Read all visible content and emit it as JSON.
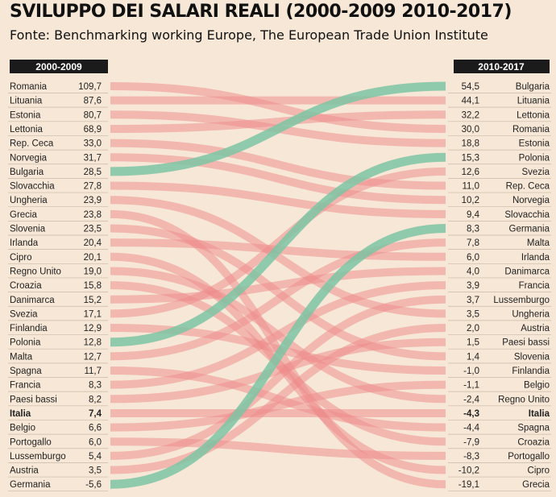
{
  "header": {
    "title": "SVILUPPO DEI SALARI REALI (2000-2009 2010-2017)",
    "subtitle": "Fonte: Benchmarking working Europe, The European Trade Union Institute"
  },
  "colors": {
    "background": "#f6e7d6",
    "band": "#ee8a8a",
    "highlight": "#7ec4a4",
    "header_box": "#1b1b1b",
    "header_text": "#ffffff",
    "row_line": "#c9b9a6"
  },
  "chart_data": {
    "type": "slope",
    "title": "SVILUPPO DEI SALARI REALI (2000-2009 2010-2017)",
    "left_header": "2000-2009",
    "right_header": "2010-2017",
    "highlighted_green": [
      "Bulgaria",
      "Polonia",
      "Germania"
    ],
    "bold": [
      "Italia"
    ],
    "left": [
      {
        "country": "Romania",
        "label": "109,7",
        "value": 109.7
      },
      {
        "country": "Lituania",
        "label": "87,6",
        "value": 87.6
      },
      {
        "country": "Estonia",
        "label": "80,7",
        "value": 80.7
      },
      {
        "country": "Lettonia",
        "label": "68,9",
        "value": 68.9
      },
      {
        "country": "Rep. Ceca",
        "label": "33,0",
        "value": 33.0
      },
      {
        "country": "Norvegia",
        "label": "31,7",
        "value": 31.7
      },
      {
        "country": "Bulgaria",
        "label": "28,5",
        "value": 28.5
      },
      {
        "country": "Slovacchia",
        "label": "27,8",
        "value": 27.8
      },
      {
        "country": "Ungheria",
        "label": "23,9",
        "value": 23.9
      },
      {
        "country": "Grecia",
        "label": "23,8",
        "value": 23.8
      },
      {
        "country": "Slovenia",
        "label": "23,5",
        "value": 23.5
      },
      {
        "country": "Irlanda",
        "label": "20,4",
        "value": 20.4
      },
      {
        "country": "Cipro",
        "label": "20,1",
        "value": 20.1
      },
      {
        "country": "Regno Unito",
        "label": "19,0",
        "value": 19.0
      },
      {
        "country": "Croazia",
        "label": "15,8",
        "value": 15.8
      },
      {
        "country": "Danimarca",
        "label": "15,2",
        "value": 15.2
      },
      {
        "country": "Svezia",
        "label": "17,1",
        "value": 17.1
      },
      {
        "country": "Finlandia",
        "label": "12,9",
        "value": 12.9
      },
      {
        "country": "Polonia",
        "label": "12,8",
        "value": 12.8
      },
      {
        "country": "Malta",
        "label": "12,7",
        "value": 12.7
      },
      {
        "country": "Spagna",
        "label": "11,7",
        "value": 11.7
      },
      {
        "country": "Francia",
        "label": "8,3",
        "value": 8.3
      },
      {
        "country": "Paesi bassi",
        "label": "8,2",
        "value": 8.2
      },
      {
        "country": "Italia",
        "label": "7,4",
        "value": 7.4
      },
      {
        "country": "Belgio",
        "label": "6,6",
        "value": 6.6
      },
      {
        "country": "Portogallo",
        "label": "6,0",
        "value": 6.0
      },
      {
        "country": "Lussemburgo",
        "label": "5,4",
        "value": 5.4
      },
      {
        "country": "Austria",
        "label": "3,5",
        "value": 3.5
      },
      {
        "country": "Germania",
        "label": "-5,6",
        "value": -5.6
      }
    ],
    "right": [
      {
        "country": "Bulgaria",
        "label": "54,5",
        "value": 54.5
      },
      {
        "country": "Lituania",
        "label": "44,1",
        "value": 44.1
      },
      {
        "country": "Lettonia",
        "label": "32,2",
        "value": 32.2
      },
      {
        "country": "Romania",
        "label": "30,0",
        "value": 30.0
      },
      {
        "country": "Estonia",
        "label": "18,8",
        "value": 18.8
      },
      {
        "country": "Polonia",
        "label": "15,3",
        "value": 15.3
      },
      {
        "country": "Svezia",
        "label": "12,6",
        "value": 12.6
      },
      {
        "country": "Rep. Ceca",
        "label": "11,0",
        "value": 11.0
      },
      {
        "country": "Norvegia",
        "label": "10,2",
        "value": 10.2
      },
      {
        "country": "Slovacchia",
        "label": "9,4",
        "value": 9.4
      },
      {
        "country": "Germania",
        "label": "8,3",
        "value": 8.3
      },
      {
        "country": "Malta",
        "label": "7,8",
        "value": 7.8
      },
      {
        "country": "Irlanda",
        "label": "6,0",
        "value": 6.0
      },
      {
        "country": "Danimarca",
        "label": "4,0",
        "value": 4.0
      },
      {
        "country": "Francia",
        "label": "3,9",
        "value": 3.9
      },
      {
        "country": "Lussemburgo",
        "label": "3,7",
        "value": 3.7
      },
      {
        "country": "Ungheria",
        "label": "3,5",
        "value": 3.5
      },
      {
        "country": "Austria",
        "label": "2,0",
        "value": 2.0
      },
      {
        "country": "Paesi bassi",
        "label": "1,5",
        "value": 1.5
      },
      {
        "country": "Slovenia",
        "label": "1,4",
        "value": 1.4
      },
      {
        "country": "Finlandia",
        "label": "-1,0",
        "value": -1.0
      },
      {
        "country": "Belgio",
        "label": "-1,1",
        "value": -1.1
      },
      {
        "country": "Regno Unito",
        "label": "-2,4",
        "value": -2.4
      },
      {
        "country": "Italia",
        "label": "-4,3",
        "value": -4.3
      },
      {
        "country": "Spagna",
        "label": "-4,4",
        "value": -4.4
      },
      {
        "country": "Croazia",
        "label": "-7,9",
        "value": -7.9
      },
      {
        "country": "Portogallo",
        "label": "-8,3",
        "value": -8.3
      },
      {
        "country": "Cipro",
        "label": "-10,2",
        "value": -10.2
      },
      {
        "country": "Grecia",
        "label": "-19,1",
        "value": -19.1
      }
    ]
  }
}
